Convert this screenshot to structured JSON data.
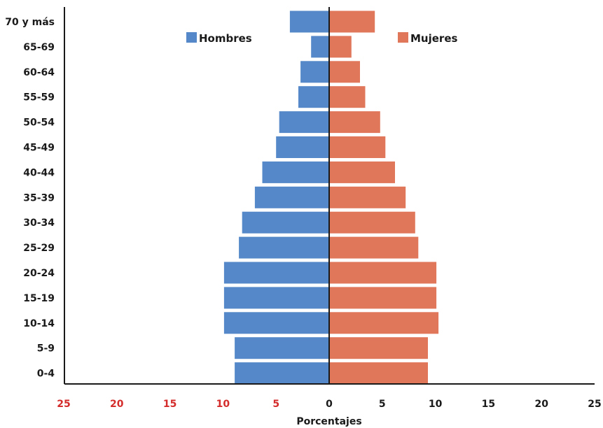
{
  "chart_data": {
    "type": "bar",
    "orientation": "horizontal",
    "categories": [
      "70 y más",
      "65-69",
      "60-64",
      "55-59",
      "50-54",
      "45-49",
      "40-44",
      "35-39",
      "30-34",
      "25-29",
      "20-24",
      "15-19",
      "10-14",
      "5-9",
      "0-4"
    ],
    "series": [
      {
        "name": "Hombres",
        "color": "#5588c8",
        "side": "left",
        "values": [
          3.7,
          1.7,
          2.7,
          2.9,
          4.7,
          5.0,
          6.3,
          7.0,
          8.2,
          8.5,
          9.9,
          9.9,
          9.9,
          8.9,
          8.9
        ]
      },
      {
        "name": "Mujeres",
        "color": "#e0765a",
        "side": "right",
        "values": [
          4.3,
          2.1,
          2.9,
          3.4,
          4.8,
          5.3,
          6.2,
          7.2,
          8.1,
          8.4,
          10.1,
          10.1,
          10.3,
          9.3,
          9.3
        ]
      }
    ],
    "x_ticks": [
      "25",
      "20",
      "15",
      "10",
      "5",
      "0",
      "5",
      "10",
      "15",
      "20",
      "25"
    ],
    "x_tick_colors": {
      "left": "#d42b2b",
      "zero_and_right": "#1a1a1a"
    },
    "xlim": [
      -25,
      25
    ],
    "xlabel": "Porcentajes",
    "ylabel": "",
    "title": "",
    "legend": [
      {
        "label": "Hombres",
        "color": "#5588c8"
      },
      {
        "label": "Mujeres",
        "color": "#e0765a"
      }
    ],
    "grid": false
  }
}
